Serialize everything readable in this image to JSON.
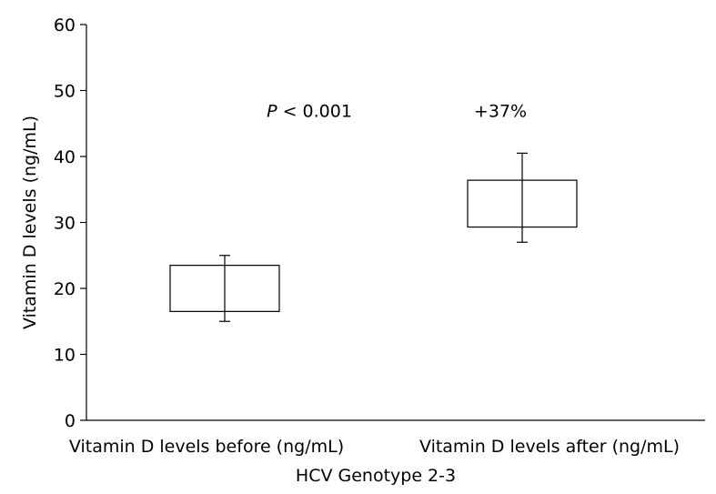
{
  "chart_data": {
    "type": "box",
    "xlabel": "HCV Genotype 2-3",
    "ylabel": "Vitamin D levels (ng/mL)",
    "ylim": [
      0,
      60
    ],
    "yticks": [
      0,
      10,
      20,
      30,
      40,
      50,
      60
    ],
    "grid": false,
    "legend": "none",
    "categories": [
      "Vitamin D levels before (ng/mL)",
      "Vitamin D levels after (ng/mL)"
    ],
    "boxes": [
      {
        "category": "Vitamin D levels before (ng/mL)",
        "whisker_low": 15,
        "q1": 16.5,
        "q3": 23.5,
        "whisker_high": 25
      },
      {
        "category": "Vitamin D levels after (ng/mL)",
        "whisker_low": 27,
        "q1": 29.3,
        "q3": 36.4,
        "whisker_high": 40.5
      }
    ],
    "annotations": [
      {
        "italic": "P",
        "text": " < 0.001",
        "x_between": [
          0,
          1
        ],
        "y": 47
      },
      {
        "text": "+37%",
        "category_index": 1,
        "y": 47
      }
    ]
  }
}
